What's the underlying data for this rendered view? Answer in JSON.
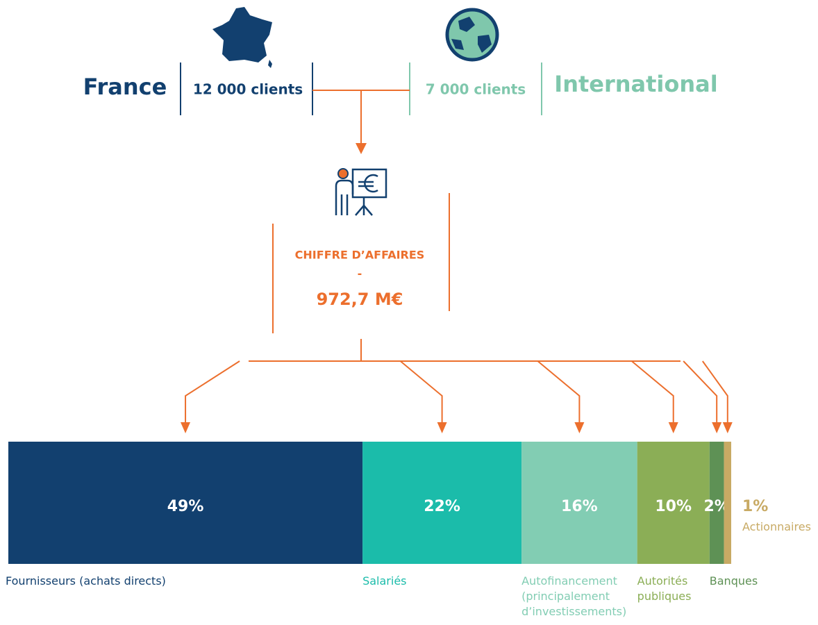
{
  "france": {
    "label": "France",
    "clients": "12 000 clients"
  },
  "international": {
    "label": "International",
    "clients": "7 000 clients"
  },
  "revenue": {
    "title": "CHIFFRE D’AFFAIRES",
    "separator": "-",
    "amount": "972,7 M€"
  },
  "chart_data": {
    "type": "stacked-bar",
    "categories": [
      "Fournisseurs (achats directs)",
      "Salariés",
      "Autofinancement\n(principalement\nd’investissements)",
      "Autorités\npubliques",
      "Banques",
      "Actionnaires"
    ],
    "values": [
      49,
      22,
      16,
      10,
      2,
      1
    ],
    "value_labels": [
      "49%",
      "22%",
      "16%",
      "10%",
      "2%",
      "1%"
    ],
    "colors": [
      "#12406f",
      "#1bbcaa",
      "#82cdb3",
      "#8bae56",
      "#5e9155",
      "#c8aa64"
    ]
  }
}
